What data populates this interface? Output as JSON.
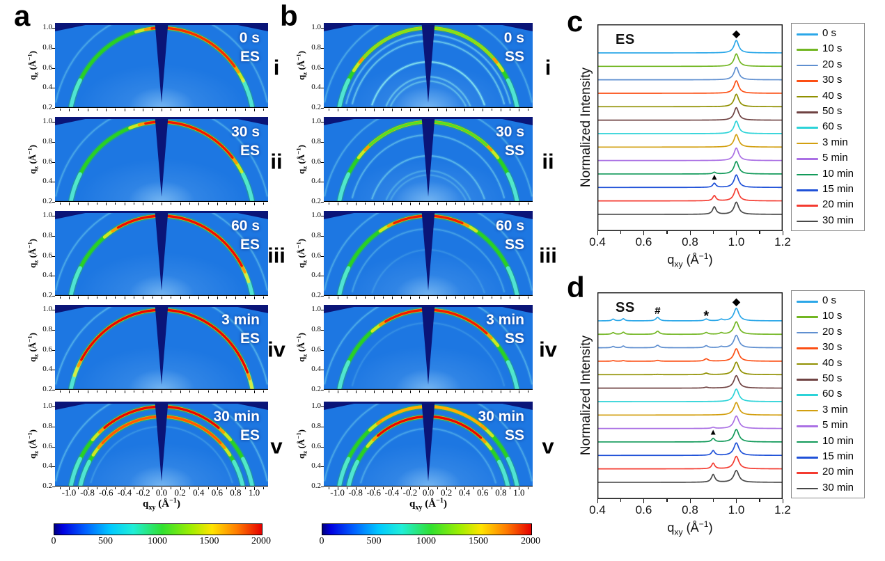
{
  "colors": {
    "detector_bg": "#1d77e2",
    "detector_shadow": "#0a1578",
    "ring_body": "#2ad41c",
    "ring_feet": "#55ecd8",
    "ring_faint": "#8deef0",
    "glow": "#8cc6f6",
    "colorbar_gradient": [
      "#00007f 0%",
      "#0000e0 4%",
      "#0060ff 15%",
      "#00c8ff 27%",
      "#20eed8 38%",
      "#30e030 52%",
      "#a0ee00 66%",
      "#ffe400 76%",
      "#ff7c00 88%",
      "#e60000 100%"
    ]
  },
  "chart_data": [
    {
      "id": "a",
      "type": "heatmap",
      "panel_letter": "a",
      "sample": "ES",
      "xlabel_parts": {
        "sym": "q",
        "sub": "xy",
        "unit": "Å",
        "power": "-1"
      },
      "ylabel_parts": {
        "sym": "q",
        "sub": "z",
        "unit": "Å",
        "power": "-1"
      },
      "xlim": [
        -1.15,
        1.15
      ],
      "ylim": [
        0.2,
        1.05
      ],
      "xticks": [
        -1.0,
        -0.8,
        -0.6,
        -0.4,
        -0.2,
        0.0,
        0.2,
        0.4,
        0.6,
        0.8,
        1.0
      ],
      "yticks": [
        1.0,
        0.8,
        0.6,
        0.4,
        0.2
      ],
      "colorbar": {
        "min": 0,
        "max": 2000,
        "ticks": [
          0,
          500,
          1000,
          1500,
          2000
        ]
      },
      "frames": [
        {
          "index": "i",
          "time": "0 s",
          "rings": [
            {
              "q": 1.17,
              "type": "faint",
              "opacity": 0.3
            },
            {
              "q": 1.0,
              "type": "main",
              "hot": "#f23000",
              "hot_span": [
                38,
                96
              ]
            }
          ]
        },
        {
          "index": "ii",
          "time": "30 s",
          "rings": [
            {
              "q": 1.17,
              "type": "faint",
              "opacity": 0.3
            },
            {
              "q": 1.0,
              "type": "main",
              "hot": "#ee1800",
              "hot_span": [
                40,
                100
              ]
            }
          ]
        },
        {
          "index": "iii",
          "time": "60 s",
          "rings": [
            {
              "q": 1.17,
              "type": "faint",
              "opacity": 0.32
            },
            {
              "q": 1.0,
              "type": "main",
              "hot": "#ee0e00",
              "hot_span": [
                30,
                118
              ]
            }
          ]
        },
        {
          "index": "iv",
          "time": "3 min",
          "rings": [
            {
              "q": 1.17,
              "type": "faint",
              "opacity": 0.35
            },
            {
              "q": 1.0,
              "type": "main",
              "hot": "#e80800",
              "hot_span": [
                22,
                150
              ]
            }
          ]
        },
        {
          "index": "v",
          "time": "30 min",
          "rings": [
            {
              "q": 1.17,
              "type": "faint",
              "opacity": 0.35
            },
            {
              "q": 1.0,
              "type": "main",
              "hot": "#e80800",
              "hot_span": [
                52,
                128
              ]
            },
            {
              "q": 0.9,
              "type": "main",
              "hot": "#ff5a00",
              "hot_span": [
                45,
                135
              ]
            },
            {
              "q": 0.8,
              "type": "faint",
              "opacity": 0.18
            }
          ]
        }
      ]
    },
    {
      "id": "b",
      "type": "heatmap",
      "panel_letter": "b",
      "sample": "SS",
      "xlabel_parts": {
        "sym": "q",
        "sub": "xy",
        "unit": "Å",
        "power": "-1"
      },
      "ylabel_parts": {
        "sym": "q",
        "sub": "z",
        "unit": "Å",
        "power": "-1"
      },
      "xlim": [
        -1.15,
        1.15
      ],
      "ylim": [
        0.2,
        1.05
      ],
      "xticks": [
        -1.0,
        -0.8,
        -0.6,
        -0.4,
        -0.2,
        0.0,
        0.2,
        0.4,
        0.6,
        0.8,
        1.0
      ],
      "yticks": [
        1.0,
        0.8,
        0.6,
        0.4,
        0.2
      ],
      "colorbar": {
        "min": 0,
        "max": 2000,
        "ticks": [
          0,
          500,
          1000,
          1500,
          2000
        ]
      },
      "frames": [
        {
          "index": "i",
          "time": "0 s",
          "rings": [
            {
              "q": 1.17,
              "type": "faint",
              "opacity": 0.3
            },
            {
              "q": 1.0,
              "type": "main",
              "hot": "#7ce818",
              "hot_span": [
                45,
                135
              ]
            },
            {
              "q": 0.935,
              "type": "faint",
              "opacity": 0.45
            },
            {
              "q": 0.87,
              "type": "faint",
              "opacity": 0.5
            },
            {
              "q": 0.66,
              "type": "faint",
              "opacity": 0.75
            },
            {
              "q": 0.512,
              "type": "faint",
              "opacity": 0.45
            },
            {
              "q": 0.468,
              "type": "faint",
              "opacity": 0.4
            }
          ]
        },
        {
          "index": "ii",
          "time": "30 s",
          "rings": [
            {
              "q": 1.17,
              "type": "faint",
              "opacity": 0.3
            },
            {
              "q": 1.0,
              "type": "main",
              "hot": "#52e420",
              "hot_span": [
                50,
                130
              ]
            },
            {
              "q": 0.87,
              "type": "faint",
              "opacity": 0.38
            },
            {
              "q": 0.66,
              "type": "faint",
              "opacity": 0.42
            },
            {
              "q": 0.512,
              "type": "faint",
              "opacity": 0.26
            },
            {
              "q": 0.468,
              "type": "faint",
              "opacity": 0.22
            }
          ]
        },
        {
          "index": "iii",
          "time": "60 s",
          "rings": [
            {
              "q": 1.17,
              "type": "faint",
              "opacity": 0.3
            },
            {
              "q": 1.0,
              "type": "main",
              "hot": "#f02000",
              "hot_span": [
                68,
                112
              ]
            },
            {
              "q": 0.87,
              "type": "faint",
              "opacity": 0.25
            },
            {
              "q": 0.66,
              "type": "faint",
              "opacity": 0.15
            }
          ]
        },
        {
          "index": "iv",
          "time": "3 min",
          "rings": [
            {
              "q": 1.17,
              "type": "faint",
              "opacity": 0.32
            },
            {
              "q": 1.0,
              "type": "main",
              "hot": "#f01c00",
              "hot_span": [
                50,
                118
              ]
            },
            {
              "q": 0.87,
              "type": "faint",
              "opacity": 0.15
            }
          ]
        },
        {
          "index": "v",
          "time": "30 min",
          "rings": [
            {
              "q": 1.17,
              "type": "faint",
              "opacity": 0.3
            },
            {
              "q": 1.0,
              "type": "main",
              "hot": "#ffb000",
              "hot_span": [
                55,
                120
              ]
            },
            {
              "q": 0.9,
              "type": "main",
              "hot": "#e80800",
              "hot_span": [
                50,
                128
              ]
            },
            {
              "q": 0.78,
              "type": "faint",
              "opacity": 0.28
            }
          ]
        }
      ]
    },
    {
      "id": "c",
      "type": "line",
      "panel_letter": "c",
      "sample": "ES",
      "ylabel": "Normalized Intensity",
      "xlabel_parts": {
        "sym": "q",
        "sub": "xy",
        "unit": "Å",
        "power": "-1"
      },
      "xlim": [
        0.4,
        1.2
      ],
      "xticks": [
        0.4,
        0.6,
        0.8,
        1.0,
        1.2
      ],
      "legend_position": "right",
      "annotations": [
        {
          "symbol": "◆",
          "q": 1.0,
          "row": 0
        },
        {
          "symbol": "▲",
          "q": 0.905,
          "row": 10
        }
      ],
      "series": [
        {
          "name": "0 s",
          "color": "#2ba7e8",
          "peaks": [
            [
              1.0,
              1.0,
              0.012
            ]
          ]
        },
        {
          "name": "10 s",
          "color": "#72b622",
          "peaks": [
            [
              1.0,
              1.0,
              0.012
            ]
          ]
        },
        {
          "name": "20 s",
          "color": "#5f8fd0",
          "peaks": [
            [
              1.0,
              1.0,
              0.012
            ]
          ]
        },
        {
          "name": "30 s",
          "color": "#fc4f14",
          "peaks": [
            [
              1.0,
              1.0,
              0.012
            ]
          ]
        },
        {
          "name": "40 s",
          "color": "#909000",
          "peaks": [
            [
              1.0,
              1.0,
              0.012
            ]
          ]
        },
        {
          "name": "50 s",
          "color": "#6f4242",
          "peaks": [
            [
              1.0,
              1.0,
              0.012
            ]
          ]
        },
        {
          "name": "60 s",
          "color": "#2cd3d8",
          "peaks": [
            [
              1.0,
              1.0,
              0.012
            ]
          ]
        },
        {
          "name": "3 min",
          "color": "#d29f0f",
          "peaks": [
            [
              1.0,
              1.0,
              0.012
            ]
          ]
        },
        {
          "name": "5 min",
          "color": "#aa70e4",
          "peaks": [
            [
              1.0,
              1.0,
              0.012
            ]
          ]
        },
        {
          "name": "10 min",
          "color": "#129a5a",
          "peaks": [
            [
              0.905,
              0.13,
              0.008
            ],
            [
              1.0,
              1.0,
              0.012
            ]
          ]
        },
        {
          "name": "15 min",
          "color": "#1f51d8",
          "peaks": [
            [
              0.905,
              0.33,
              0.008
            ],
            [
              1.0,
              1.0,
              0.012
            ]
          ]
        },
        {
          "name": "20 min",
          "color": "#f43b30",
          "peaks": [
            [
              0.905,
              0.42,
              0.008
            ],
            [
              1.0,
              1.0,
              0.012
            ]
          ]
        },
        {
          "name": "30 min",
          "color": "#484848",
          "peaks": [
            [
              0.905,
              0.6,
              0.009
            ],
            [
              1.0,
              0.97,
              0.012
            ]
          ]
        }
      ]
    },
    {
      "id": "d",
      "type": "line",
      "panel_letter": "d",
      "sample": "SS",
      "ylabel": "Normalized Intensity",
      "xlabel_parts": {
        "sym": "q",
        "sub": "xy",
        "unit": "Å",
        "power": "-1"
      },
      "xlim": [
        0.4,
        1.2
      ],
      "xticks": [
        0.4,
        0.6,
        0.8,
        1.0,
        1.2
      ],
      "legend_position": "right",
      "annotations": [
        {
          "symbol": "#",
          "q": 0.66,
          "row": 0
        },
        {
          "symbol": "*",
          "q": 0.87,
          "row": 0
        },
        {
          "symbol": "◆",
          "q": 1.0,
          "row": 0
        },
        {
          "symbol": "▲",
          "q": 0.9,
          "row": 9
        }
      ],
      "series": [
        {
          "name": "0 s",
          "color": "#2ba7e8",
          "peaks": [
            [
              0.468,
              0.14,
              0.007
            ],
            [
              0.512,
              0.17,
              0.007
            ],
            [
              0.66,
              0.28,
              0.009
            ],
            [
              0.87,
              0.14,
              0.009
            ],
            [
              0.935,
              0.11,
              0.008
            ],
            [
              1.0,
              1.0,
              0.013
            ]
          ]
        },
        {
          "name": "10 s",
          "color": "#72b622",
          "peaks": [
            [
              0.468,
              0.14,
              0.007
            ],
            [
              0.512,
              0.17,
              0.007
            ],
            [
              0.66,
              0.25,
              0.009
            ],
            [
              0.87,
              0.14,
              0.009
            ],
            [
              0.935,
              0.11,
              0.008
            ],
            [
              1.0,
              1.0,
              0.013
            ]
          ]
        },
        {
          "name": "20 s",
          "color": "#5f8fd0",
          "peaks": [
            [
              0.468,
              0.11,
              0.007
            ],
            [
              0.512,
              0.14,
              0.007
            ],
            [
              0.66,
              0.2,
              0.009
            ],
            [
              0.87,
              0.16,
              0.009
            ],
            [
              0.935,
              0.09,
              0.008
            ],
            [
              1.0,
              1.0,
              0.013
            ]
          ]
        },
        {
          "name": "30 s",
          "color": "#fc4f14",
          "peaks": [
            [
              0.468,
              0.05,
              0.007
            ],
            [
              0.512,
              0.05,
              0.007
            ],
            [
              0.66,
              0.07,
              0.009
            ],
            [
              0.87,
              0.19,
              0.01
            ],
            [
              1.0,
              1.0,
              0.013
            ]
          ]
        },
        {
          "name": "40 s",
          "color": "#909000",
          "peaks": [
            [
              0.66,
              0.03,
              0.009
            ],
            [
              0.87,
              0.12,
              0.01
            ],
            [
              1.0,
              1.0,
              0.013
            ]
          ]
        },
        {
          "name": "50 s",
          "color": "#6f4242",
          "peaks": [
            [
              0.87,
              0.07,
              0.01
            ],
            [
              1.0,
              1.0,
              0.013
            ]
          ]
        },
        {
          "name": "60 s",
          "color": "#2cd3d8",
          "peaks": [
            [
              1.0,
              1.0,
              0.013
            ]
          ]
        },
        {
          "name": "3 min",
          "color": "#d29f0f",
          "peaks": [
            [
              1.0,
              1.0,
              0.013
            ]
          ]
        },
        {
          "name": "5 min",
          "color": "#aa70e4",
          "peaks": [
            [
              0.9,
              0.09,
              0.008
            ],
            [
              1.0,
              1.0,
              0.013
            ]
          ]
        },
        {
          "name": "10 min",
          "color": "#129a5a",
          "peaks": [
            [
              0.9,
              0.28,
              0.008
            ],
            [
              1.0,
              1.0,
              0.013
            ]
          ]
        },
        {
          "name": "15 min",
          "color": "#1f51d8",
          "peaks": [
            [
              0.9,
              0.38,
              0.008
            ],
            [
              1.0,
              1.0,
              0.013
            ]
          ]
        },
        {
          "name": "20 min",
          "color": "#f43b30",
          "peaks": [
            [
              0.9,
              0.45,
              0.008
            ],
            [
              1.0,
              1.0,
              0.013
            ]
          ]
        },
        {
          "name": "30 min",
          "color": "#484848",
          "peaks": [
            [
              0.9,
              0.62,
              0.009
            ],
            [
              1.0,
              0.95,
              0.013
            ]
          ]
        }
      ]
    }
  ]
}
